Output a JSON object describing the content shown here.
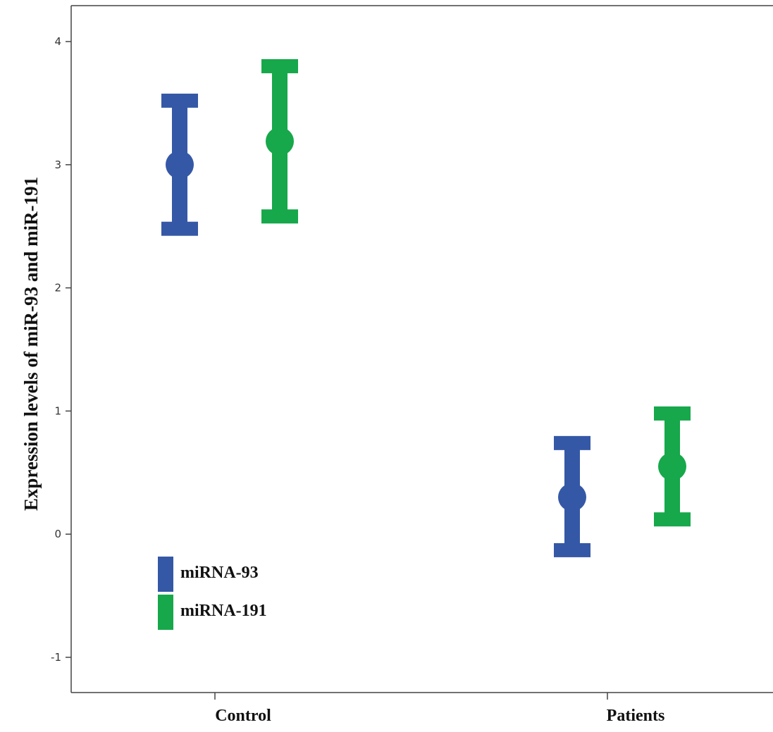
{
  "chart_data": {
    "type": "errorbar",
    "title": "",
    "xlabel": "",
    "ylabel": "Expression levels of miR-93 and miR-191",
    "categories": [
      "Control",
      "Patients"
    ],
    "ylim": [
      -1.25,
      4.3
    ],
    "yticks": [
      -1,
      0,
      1,
      2,
      3,
      4
    ],
    "grid": false,
    "legend_position": "bottom-left",
    "series": [
      {
        "name": "miRNA-93",
        "color": "#3558a6",
        "mean": [
          3.0,
          0.3
        ],
        "lower": [
          2.48,
          -0.13
        ],
        "upper": [
          3.52,
          0.74
        ]
      },
      {
        "name": "miRNA-191",
        "color": "#16a84a",
        "mean": [
          3.19,
          0.55
        ],
        "lower": [
          2.58,
          0.12
        ],
        "upper": [
          3.8,
          0.98
        ]
      }
    ]
  }
}
